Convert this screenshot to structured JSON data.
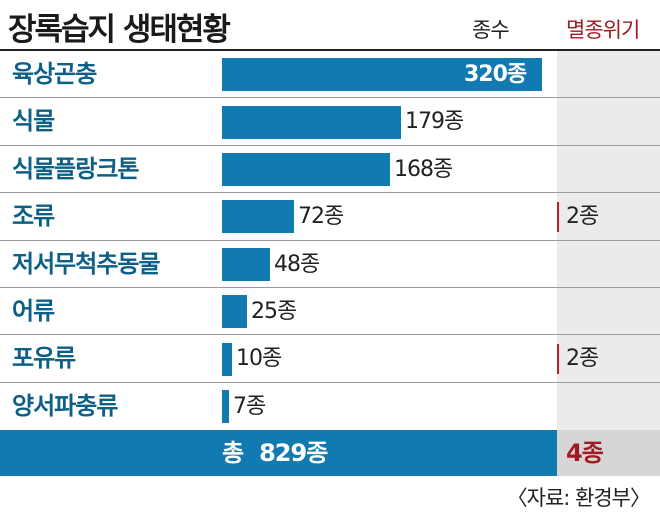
{
  "title": "장록습지 생태현황",
  "headers": {
    "count": "종수",
    "endangered": "멸종위기"
  },
  "chart_data": {
    "type": "bar",
    "orientation": "horizontal",
    "title": "장록습지 생태현황",
    "categories": [
      "육상곤충",
      "식물",
      "식물플랑크톤",
      "조류",
      "저서무척추동물",
      "어류",
      "포유류",
      "양서파충류"
    ],
    "series": [
      {
        "name": "종수",
        "values": [
          320,
          179,
          168,
          72,
          48,
          25,
          10,
          7
        ]
      },
      {
        "name": "멸종위기",
        "values": [
          null,
          null,
          null,
          2,
          null,
          null,
          2,
          null
        ]
      }
    ],
    "value_labels": [
      "320종",
      "179종",
      "168종",
      "72종",
      "48종",
      "25종",
      "10종",
      "7종"
    ],
    "endangered_labels": [
      "",
      "",
      "",
      "2종",
      "",
      "",
      "2종",
      ""
    ]
  },
  "total": {
    "label": "총",
    "value": "829종",
    "endangered": "4종"
  },
  "source": "〈자료: 환경부〉",
  "colors": {
    "bar": "#117ab0",
    "label": "#0d5f86",
    "endangered": "#a11a22",
    "side_column": "#ebebeb"
  }
}
